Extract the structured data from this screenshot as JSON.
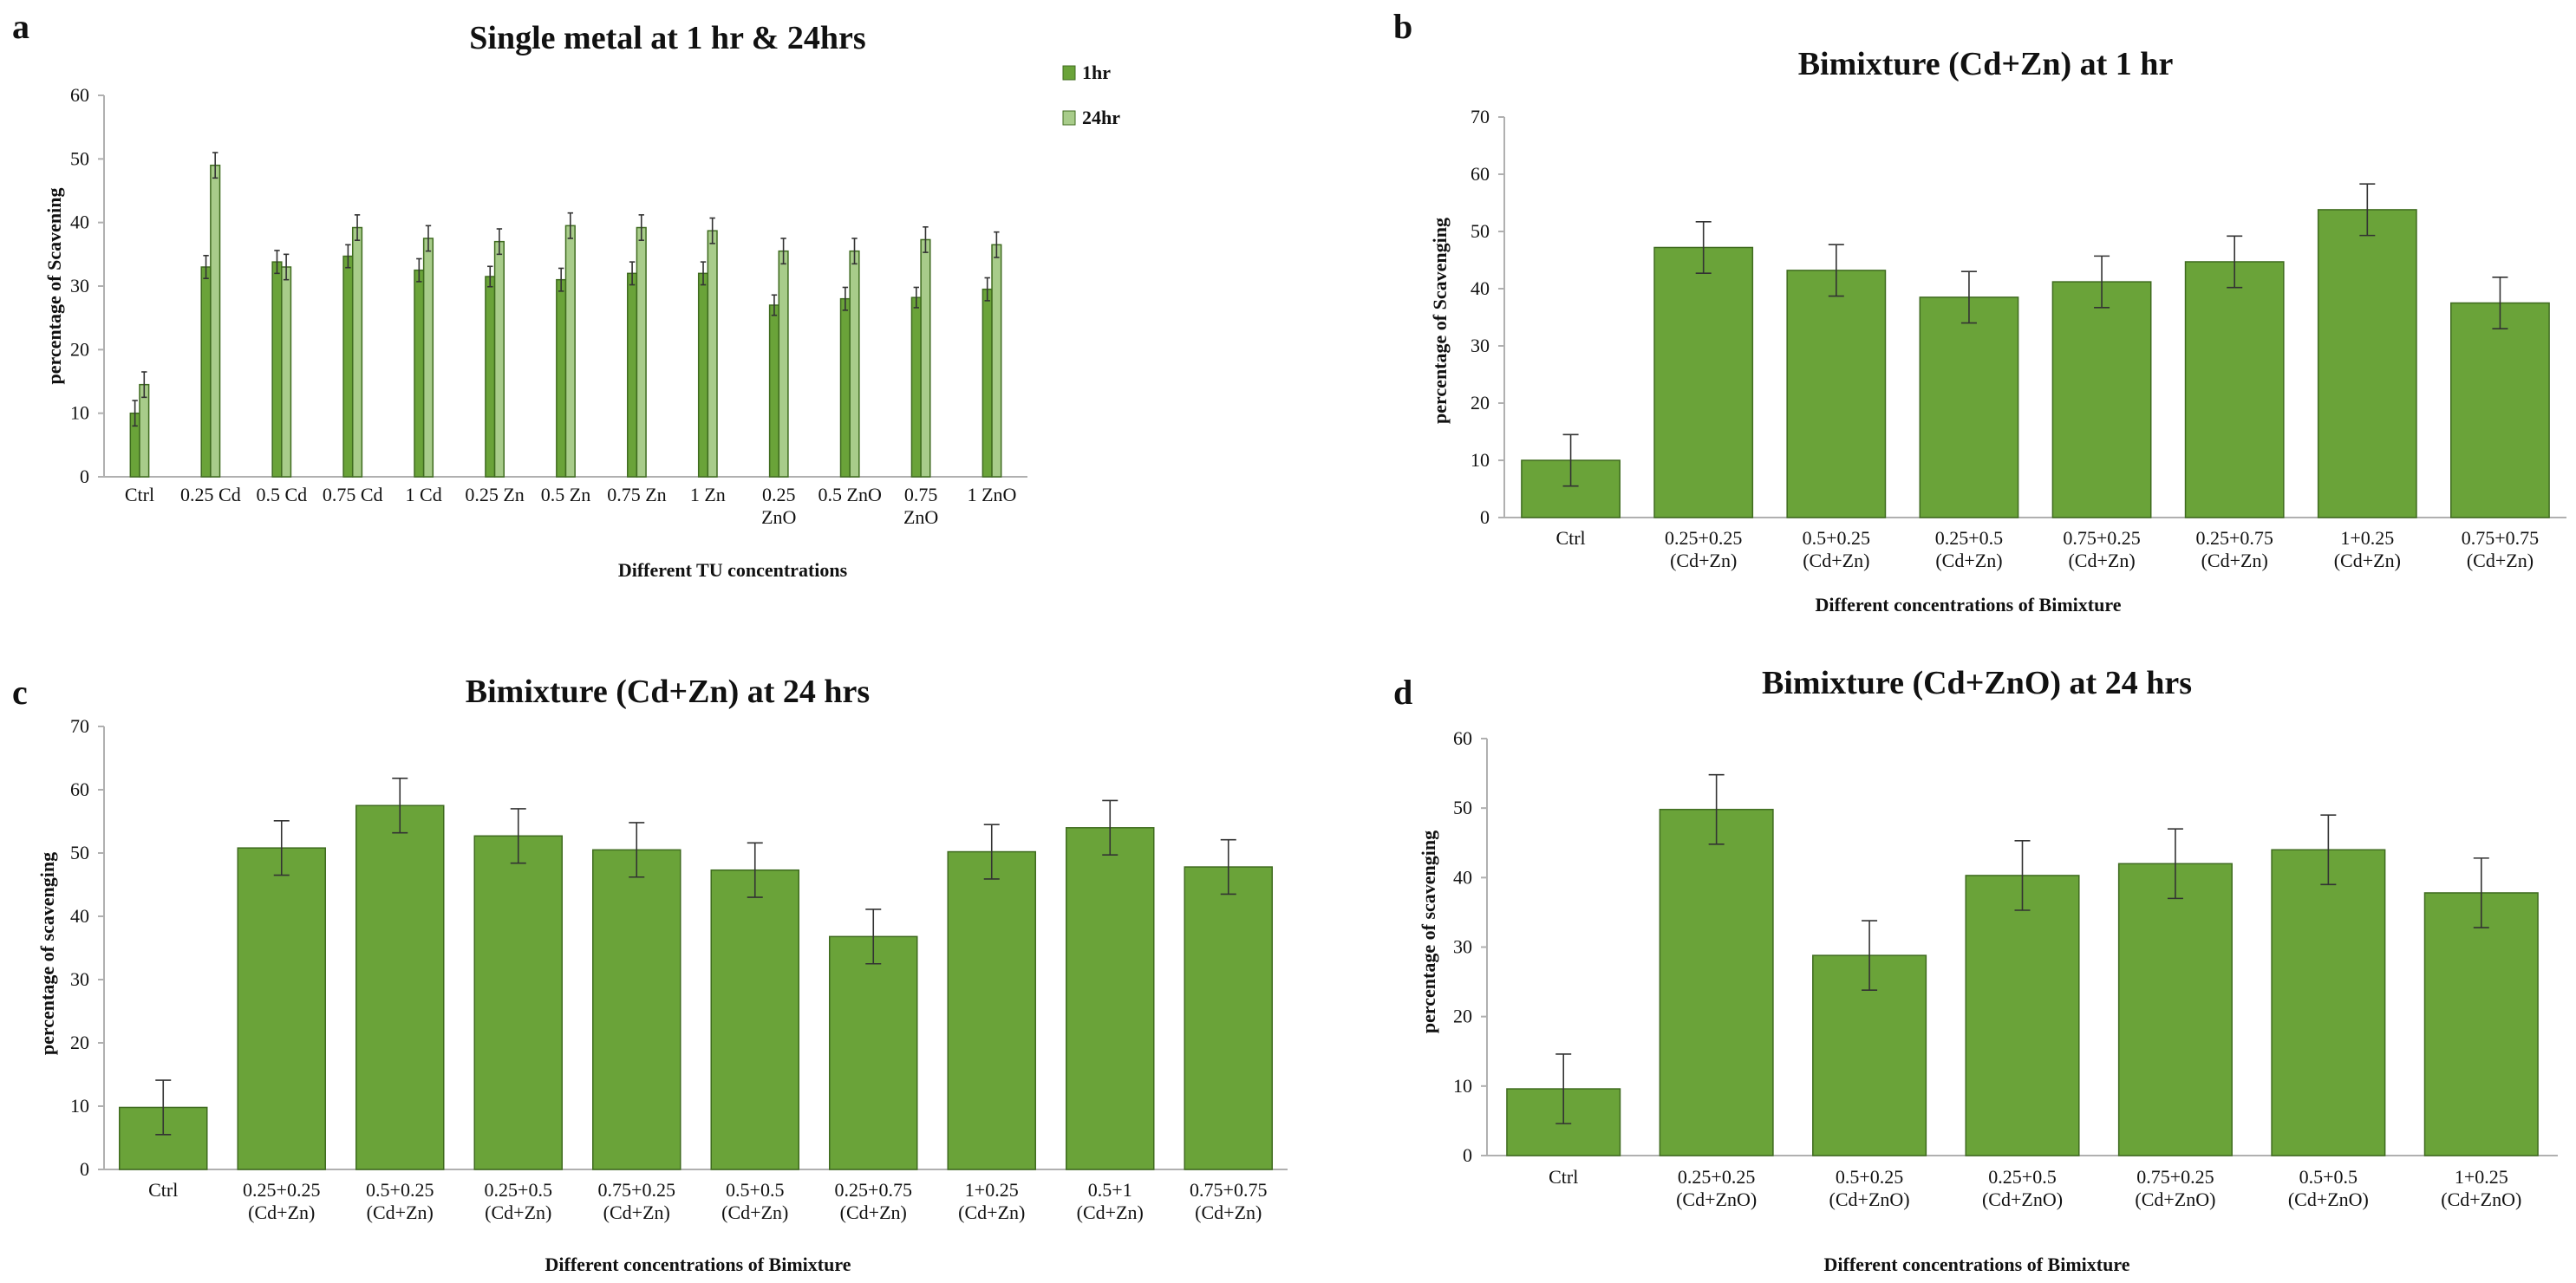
{
  "colors": {
    "bar_dark": "#6aa339",
    "bar_light": "#a8cc8a",
    "bar_stroke": "#3f6b1f",
    "axis": "#b0b0b0",
    "error": "#333333"
  },
  "chart_data": [
    {
      "panel": "a",
      "type": "bar",
      "title": "Single metal at 1 hr & 24hrs",
      "xlabel": "Different TU concentrations",
      "ylabel": "percentage of Scavening",
      "ylim": [
        0,
        60
      ],
      "ticks": [
        0,
        10,
        20,
        30,
        40,
        50,
        60
      ],
      "legend_position": "top-right",
      "categories": [
        [
          "Ctrl"
        ],
        [
          "0.25 Cd"
        ],
        [
          "0.5 Cd"
        ],
        [
          "0.75 Cd"
        ],
        [
          "1 Cd"
        ],
        [
          "0.25 Zn"
        ],
        [
          "0.5 Zn"
        ],
        [
          "0.75 Zn"
        ],
        [
          "1 Zn"
        ],
        [
          "0.25",
          "ZnO"
        ],
        [
          "0.5 ZnO"
        ],
        [
          "0.75",
          "ZnO"
        ],
        [
          "1 ZnO"
        ]
      ],
      "series": [
        {
          "name": "1hr",
          "color": "#6aa339",
          "values": [
            10,
            33,
            33.8,
            34.7,
            32.5,
            31.5,
            31,
            32,
            32,
            27,
            28,
            28.2,
            29.5
          ],
          "errors": [
            2,
            1.8,
            1.8,
            1.8,
            1.8,
            1.6,
            1.8,
            1.8,
            1.8,
            1.6,
            1.8,
            1.6,
            1.8
          ]
        },
        {
          "name": "24hr",
          "color": "#a8cc8a",
          "values": [
            14.5,
            49,
            33,
            39.2,
            37.5,
            37,
            39.5,
            39.2,
            38.7,
            35.5,
            35.5,
            37.3,
            36.5
          ],
          "errors": [
            2,
            2,
            2,
            2,
            2,
            2,
            2,
            2,
            2,
            2,
            2,
            2,
            2
          ]
        }
      ]
    },
    {
      "panel": "b",
      "type": "bar",
      "title": "Bimixture (Cd+Zn) at 1 hr",
      "xlabel": "Different concentrations of Bimixture",
      "ylabel": "percentage of Scavenging",
      "ylim": [
        0,
        70
      ],
      "ticks": [
        0,
        10,
        20,
        30,
        40,
        50,
        60,
        70
      ],
      "categories": [
        [
          "Ctrl"
        ],
        [
          "0.25+0.25",
          "(Cd+Zn)"
        ],
        [
          "0.5+0.25",
          "(Cd+Zn)"
        ],
        [
          "0.25+0.5",
          "(Cd+Zn)"
        ],
        [
          "0.75+0.25",
          "(Cd+Zn)"
        ],
        [
          "0.25+0.75",
          "(Cd+Zn)"
        ],
        [
          "1+0.25",
          "(Cd+Zn)"
        ],
        [
          "0.75+0.75",
          "(Cd+Zn)"
        ]
      ],
      "series": [
        {
          "name": "1 hr",
          "color": "#6aa339",
          "values": [
            10,
            47.2,
            43.2,
            38.5,
            41.2,
            44.7,
            53.8,
            37.5
          ],
          "errors": [
            4.5,
            4.5,
            4.5,
            4.5,
            4.5,
            4.5,
            4.5,
            4.5
          ]
        }
      ]
    },
    {
      "panel": "c",
      "type": "bar",
      "title": "Bimixture (Cd+Zn) at 24 hrs",
      "xlabel": "Different concentrations of Bimixture",
      "ylabel": "percentage of scavenging",
      "ylim": [
        0,
        70
      ],
      "ticks": [
        0,
        10,
        20,
        30,
        40,
        50,
        60,
        70
      ],
      "categories": [
        [
          "Ctrl"
        ],
        [
          "0.25+0.25",
          "(Cd+Zn)"
        ],
        [
          "0.5+0.25",
          "(Cd+Zn)"
        ],
        [
          "0.25+0.5",
          "(Cd+Zn)"
        ],
        [
          "0.75+0.25",
          "(Cd+Zn)"
        ],
        [
          "0.5+0.5",
          "(Cd+Zn)"
        ],
        [
          "0.25+0.75",
          "(Cd+Zn)"
        ],
        [
          "1+0.25",
          "(Cd+Zn)"
        ],
        [
          "0.5+1",
          "(Cd+Zn)"
        ],
        [
          "0.75+0.75",
          "(Cd+Zn)"
        ]
      ],
      "series": [
        {
          "name": "24 hrs",
          "color": "#6aa339",
          "values": [
            9.8,
            50.8,
            57.5,
            52.7,
            50.5,
            47.3,
            36.8,
            50.2,
            54,
            47.8
          ],
          "errors": [
            4.3,
            4.3,
            4.3,
            4.3,
            4.3,
            4.3,
            4.3,
            4.3,
            4.3,
            4.3
          ]
        }
      ]
    },
    {
      "panel": "d",
      "type": "bar",
      "title": "Bimixture (Cd+ZnO) at 24 hrs",
      "xlabel": "Different concentrations of Bimixture",
      "ylabel": "percentage of scavenging",
      "ylim": [
        0,
        60
      ],
      "ticks": [
        0,
        10,
        20,
        30,
        40,
        50,
        60
      ],
      "categories": [
        [
          "Ctrl"
        ],
        [
          "0.25+0.25",
          "(Cd+ZnO)"
        ],
        [
          "0.5+0.25",
          "(Cd+ZnO)"
        ],
        [
          "0.25+0.5",
          "(Cd+ZnO)"
        ],
        [
          "0.75+0.25",
          "(Cd+ZnO)"
        ],
        [
          "0.5+0.5",
          "(Cd+ZnO)"
        ],
        [
          "1+0.25",
          "(Cd+ZnO)"
        ]
      ],
      "series": [
        {
          "name": "24 hrs",
          "color": "#6aa339",
          "values": [
            9.6,
            49.8,
            28.8,
            40.3,
            42,
            44,
            37.8
          ],
          "errors": [
            5,
            5,
            5,
            5,
            5,
            5,
            5
          ]
        }
      ]
    }
  ]
}
